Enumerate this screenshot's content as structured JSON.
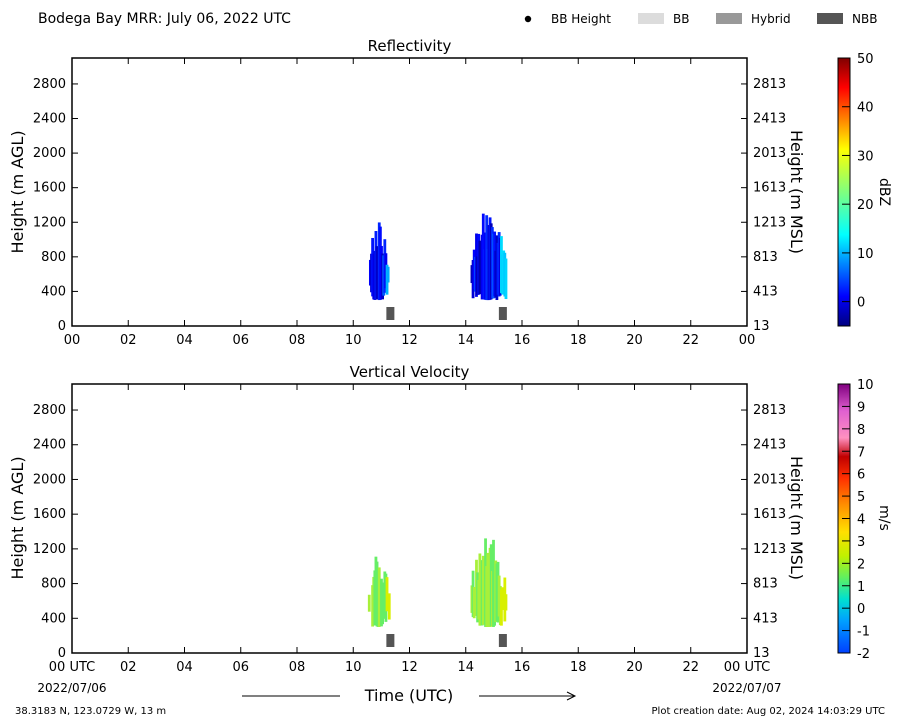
{
  "header": {
    "title": "Bodega Bay MRR:  July 06, 2022 UTC",
    "legend": [
      {
        "label": "BB Height",
        "kind": "dot",
        "color": "#000000"
      },
      {
        "label": "BB",
        "kind": "box",
        "color": "#dcdcdc"
      },
      {
        "label": "Hybrid",
        "kind": "box",
        "color": "#999999"
      },
      {
        "label": "NBB",
        "kind": "box",
        "color": "#555555"
      }
    ]
  },
  "xaxis": {
    "label": "Time (UTC)",
    "ticks": [
      "00",
      "02",
      "04",
      "06",
      "08",
      "10",
      "12",
      "14",
      "16",
      "18",
      "20",
      "22",
      "00"
    ],
    "bottom_ticks": [
      "00 UTC",
      "02",
      "04",
      "06",
      "08",
      "10",
      "12",
      "14",
      "16",
      "18",
      "20",
      "22",
      "00 UTC"
    ],
    "start_date": "2022/07/06",
    "end_date": "2022/07/07",
    "range": [
      0,
      24
    ]
  },
  "footer": {
    "location": "38.3183 N, 123.0729 W, 13 m",
    "created": "Plot creation date: Aug 02, 2024 14:03:29 UTC"
  },
  "chart_data": [
    {
      "type": "heatmap",
      "title": "Reflectivity",
      "ylabel": "Height (m AGL)",
      "ylabel_right": "Height (m MSL)",
      "yticks": [
        0,
        400,
        800,
        1200,
        1600,
        2000,
        2400,
        2800
      ],
      "yticks_right": [
        "13",
        "413",
        "813",
        "1213",
        "1613",
        "2013",
        "2413",
        "2813"
      ],
      "ylim": [
        0,
        3100
      ],
      "xlim": [
        0,
        24
      ],
      "colorbar": {
        "label": "dBZ",
        "min": -5,
        "max": 50,
        "ticks": [
          0,
          10,
          20,
          30,
          40,
          50
        ],
        "colormap": "jet"
      },
      "echoes": [
        {
          "time_start": 10.55,
          "time_end": 11.3,
          "height_bottom": 300,
          "height_top": 1200,
          "value_range": [
            -2,
            12
          ]
        },
        {
          "time_start": 14.2,
          "time_end": 15.45,
          "height_bottom": 300,
          "height_top": 1380,
          "value_range": [
            -3,
            14
          ]
        }
      ],
      "bright_band_markers": [
        {
          "time": 11.0,
          "type": "NBB"
        },
        {
          "time": 15.0,
          "type": "NBB"
        }
      ]
    },
    {
      "type": "heatmap",
      "title": "Vertical Velocity",
      "ylabel": "Height (m AGL)",
      "ylabel_right": "Height (m MSL)",
      "yticks": [
        0,
        400,
        800,
        1200,
        1600,
        2000,
        2400,
        2800
      ],
      "yticks_right": [
        "13",
        "413",
        "813",
        "1213",
        "1613",
        "2013",
        "2413",
        "2813"
      ],
      "ylim": [
        0,
        3100
      ],
      "xlim": [
        0,
        24
      ],
      "colorbar": {
        "label": "m/s",
        "min": -2,
        "max": 10,
        "ticks": [
          -2,
          -1,
          0,
          1,
          2,
          3,
          4,
          5,
          6,
          7,
          8,
          9,
          10
        ],
        "colormap": "velocity"
      },
      "echoes": [
        {
          "time_start": 10.55,
          "time_end": 11.3,
          "height_bottom": 300,
          "height_top": 1200,
          "value_range": [
            1,
            2
          ]
        },
        {
          "time_start": 14.2,
          "time_end": 15.45,
          "height_bottom": 300,
          "height_top": 1380,
          "value_range": [
            1,
            2
          ]
        }
      ],
      "bright_band_markers": [
        {
          "time": 11.0,
          "type": "NBB"
        },
        {
          "time": 15.0,
          "type": "NBB"
        }
      ]
    }
  ]
}
